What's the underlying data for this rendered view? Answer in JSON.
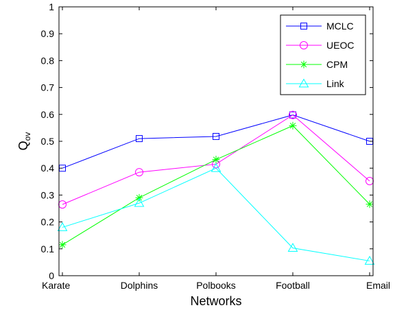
{
  "chart_data": {
    "type": "line",
    "title": "",
    "xlabel": "Networks",
    "ylabel": "Q",
    "ylabel_subscript": "ov",
    "categories": [
      "Karate",
      "Dolphins",
      "Polbooks",
      "Football",
      "Email"
    ],
    "ylim": [
      0,
      1
    ],
    "yticks": [
      "0",
      "0.1",
      "0.2",
      "0.3",
      "0.4",
      "0.5",
      "0.6",
      "0.7",
      "0.8",
      "0.9",
      "1"
    ],
    "grid": false,
    "legend_position": "top-right",
    "series": [
      {
        "name": "MCLC",
        "values": [
          0.4,
          0.51,
          0.518,
          0.598,
          0.5
        ],
        "color": "#0000ff",
        "marker": "square"
      },
      {
        "name": "UEOC",
        "values": [
          0.265,
          0.385,
          0.415,
          0.598,
          0.352
        ],
        "color": "#ff00ff",
        "marker": "circle"
      },
      {
        "name": "CPM",
        "values": [
          0.115,
          0.29,
          0.432,
          0.558,
          0.266
        ],
        "color": "#00ff00",
        "marker": "star"
      },
      {
        "name": "Link",
        "values": [
          0.18,
          0.27,
          0.4,
          0.103,
          0.055
        ],
        "color": "#00ffff",
        "marker": "triangle"
      }
    ]
  }
}
